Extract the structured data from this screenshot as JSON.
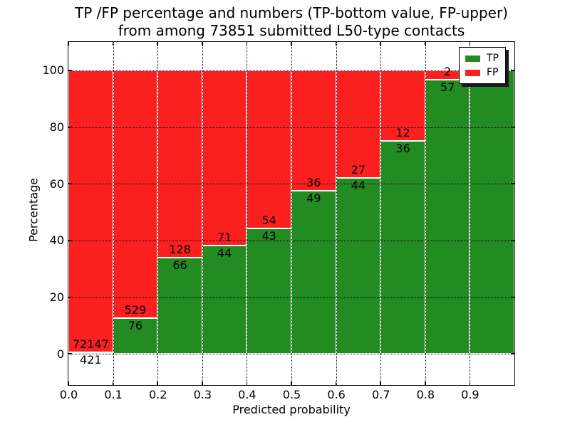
{
  "chart_data": {
    "type": "bar",
    "stacked": true,
    "title_line1": "TP /FP percentage and numbers (TP-bottom value, FP-upper)",
    "title_line2": "from among 73851 submitted L50-type contacts",
    "total_submitted_contacts": 73851,
    "xlabel": "Predicted probability",
    "ylabel": "Percentage",
    "xlim": [
      0.0,
      1.0
    ],
    "ylim": [
      -11,
      110
    ],
    "xticks": {
      "values": [
        0.0,
        0.1,
        0.2,
        0.3,
        0.4,
        0.5,
        0.6,
        0.7,
        0.8,
        0.9
      ],
      "labels": [
        "0.0",
        "0.1",
        "0.2",
        "0.3",
        "0.4",
        "0.5",
        "0.6",
        "0.7",
        "0.8",
        "0.9"
      ]
    },
    "yticks": {
      "values": [
        0,
        20,
        40,
        60,
        80,
        100
      ],
      "labels": [
        "0",
        "20",
        "40",
        "60",
        "80",
        "100"
      ]
    },
    "grid": "dotted, on both axes at ticks",
    "bin_width": 0.1,
    "bins": [
      {
        "range": [
          0.0,
          0.1
        ],
        "tp": 421,
        "fp": 72147,
        "tp_percent": 0.58
      },
      {
        "range": [
          0.1,
          0.2
        ],
        "tp": 76,
        "fp": 529,
        "tp_percent": 12.56
      },
      {
        "range": [
          0.2,
          0.3
        ],
        "tp": 66,
        "fp": 128,
        "tp_percent": 34.02
      },
      {
        "range": [
          0.3,
          0.4
        ],
        "tp": 44,
        "fp": 71,
        "tp_percent": 38.26
      },
      {
        "range": [
          0.4,
          0.5
        ],
        "tp": 43,
        "fp": 54,
        "tp_percent": 44.33
      },
      {
        "range": [
          0.5,
          0.6
        ],
        "tp": 49,
        "fp": 36,
        "tp_percent": 57.65
      },
      {
        "range": [
          0.6,
          0.7
        ],
        "tp": 44,
        "fp": 27,
        "tp_percent": 61.97
      },
      {
        "range": [
          0.7,
          0.8
        ],
        "tp": 36,
        "fp": 12,
        "tp_percent": 75.0
      },
      {
        "range": [
          0.8,
          0.9
        ],
        "tp": 57,
        "fp": 2,
        "tp_percent": 96.61
      },
      {
        "range": [
          0.9,
          1.0
        ],
        "tp": 9,
        "fp": 0,
        "tp_percent": 100.0
      }
    ],
    "series": [
      {
        "name": "TP",
        "values_percent": [
          0.58,
          12.56,
          34.02,
          38.26,
          44.33,
          57.65,
          61.97,
          75.0,
          96.61,
          100.0
        ]
      },
      {
        "name": "FP",
        "values_percent": [
          99.42,
          87.44,
          65.98,
          61.74,
          55.67,
          42.35,
          38.03,
          25.0,
          3.39,
          0.0
        ]
      }
    ],
    "colors": {
      "tp": "#228b22",
      "fp": "#fa2020",
      "grid": "#000000",
      "background": "#ffffff"
    },
    "legend": {
      "position": "upper right",
      "entries": [
        {
          "label": "TP",
          "color": "#228b22"
        },
        {
          "label": "FP",
          "color": "#fa2020"
        }
      ]
    }
  }
}
